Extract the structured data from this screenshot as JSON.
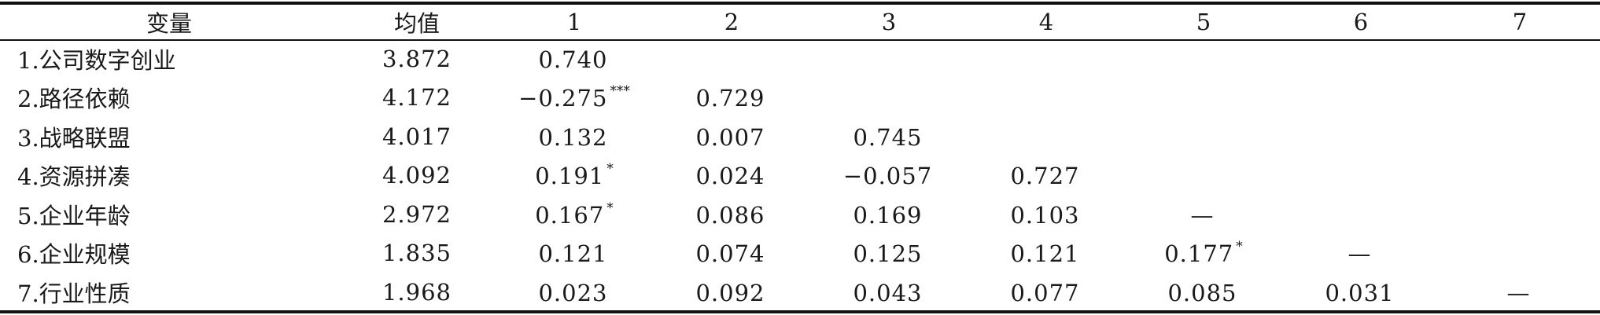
{
  "table": {
    "headers": [
      "变量",
      "均值",
      "1",
      "2",
      "3",
      "4",
      "5",
      "6",
      "7"
    ],
    "rows": [
      {
        "variable": "1.公司数字创业",
        "mean": "3.872",
        "cells": [
          {
            "value": "0.740",
            "sig": ""
          },
          {
            "value": "",
            "sig": ""
          },
          {
            "value": "",
            "sig": ""
          },
          {
            "value": "",
            "sig": ""
          },
          {
            "value": "",
            "sig": ""
          },
          {
            "value": "",
            "sig": ""
          },
          {
            "value": "",
            "sig": ""
          }
        ]
      },
      {
        "variable": "2.路径依赖",
        "mean": "4.172",
        "cells": [
          {
            "value": "−0.275",
            "sig": "***"
          },
          {
            "value": "0.729",
            "sig": ""
          },
          {
            "value": "",
            "sig": ""
          },
          {
            "value": "",
            "sig": ""
          },
          {
            "value": "",
            "sig": ""
          },
          {
            "value": "",
            "sig": ""
          },
          {
            "value": "",
            "sig": ""
          }
        ]
      },
      {
        "variable": "3.战略联盟",
        "mean": "4.017",
        "cells": [
          {
            "value": "0.132",
            "sig": ""
          },
          {
            "value": "0.007",
            "sig": ""
          },
          {
            "value": "0.745",
            "sig": ""
          },
          {
            "value": "",
            "sig": ""
          },
          {
            "value": "",
            "sig": ""
          },
          {
            "value": "",
            "sig": ""
          },
          {
            "value": "",
            "sig": ""
          }
        ]
      },
      {
        "variable": "4.资源拼凑",
        "mean": "4.092",
        "cells": [
          {
            "value": "0.191",
            "sig": "*"
          },
          {
            "value": "0.024",
            "sig": ""
          },
          {
            "value": "−0.057",
            "sig": ""
          },
          {
            "value": "0.727",
            "sig": ""
          },
          {
            "value": "",
            "sig": ""
          },
          {
            "value": "",
            "sig": ""
          },
          {
            "value": "",
            "sig": ""
          }
        ]
      },
      {
        "variable": "5.企业年龄",
        "mean": "2.972",
        "cells": [
          {
            "value": "0.167",
            "sig": "*"
          },
          {
            "value": "0.086",
            "sig": ""
          },
          {
            "value": "0.169",
            "sig": ""
          },
          {
            "value": "0.103",
            "sig": ""
          },
          {
            "value": "—",
            "sig": ""
          },
          {
            "value": "",
            "sig": ""
          },
          {
            "value": "",
            "sig": ""
          }
        ]
      },
      {
        "variable": "6.企业规模",
        "mean": "1.835",
        "cells": [
          {
            "value": "0.121",
            "sig": ""
          },
          {
            "value": "0.074",
            "sig": ""
          },
          {
            "value": "0.125",
            "sig": ""
          },
          {
            "value": "0.121",
            "sig": ""
          },
          {
            "value": "0.177",
            "sig": "*"
          },
          {
            "value": "—",
            "sig": ""
          },
          {
            "value": "",
            "sig": ""
          }
        ]
      },
      {
        "variable": "7.行业性质",
        "mean": "1.968",
        "cells": [
          {
            "value": "0.023",
            "sig": ""
          },
          {
            "value": "0.092",
            "sig": ""
          },
          {
            "value": "0.043",
            "sig": ""
          },
          {
            "value": "0.077",
            "sig": ""
          },
          {
            "value": "0.085",
            "sig": ""
          },
          {
            "value": "0.031",
            "sig": ""
          },
          {
            "value": "—",
            "sig": ""
          }
        ]
      }
    ]
  }
}
